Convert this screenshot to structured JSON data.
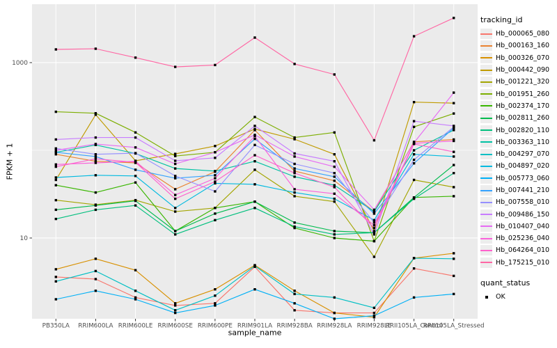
{
  "figure": {
    "panel_background": "#EBEBEB",
    "grid_color": "#FFFFFF",
    "tick_label_color": "#4D4D4D",
    "tick_mark_color": "#333333",
    "marker_color": "#000000"
  },
  "axes": {
    "x_title": "sample_name",
    "y_title": "FPKM + 1",
    "y_ticks": [
      {
        "label": "1000",
        "value": 1000
      },
      {
        "label": "10",
        "value": 10
      }
    ],
    "y_minor": [
      100
    ]
  },
  "legend": {
    "tracking_title": "tracking_id",
    "quant_title": "quant_status",
    "quant_items": [
      {
        "label": "OK",
        "marker": "black-square"
      }
    ]
  },
  "chart_data": {
    "type": "line",
    "title": "",
    "xlabel": "sample_name",
    "ylabel": "FPKM + 1",
    "y_scale": "log10",
    "ylim": [
      1.2,
      4640
    ],
    "grid": true,
    "legend_position": "right",
    "marker": {
      "shape": "square",
      "color": "#000000",
      "meaning": "quant_status OK"
    },
    "categories": [
      "PB350LA",
      "RRIM600LA",
      "RRIM600LE",
      "RRIM600SE",
      "RRIM600PE",
      "RRIM901LA",
      "RRIM928BA",
      "RRIM928LA",
      "RRIM928LE",
      "RRII105LA_Control",
      "RRII105LA_Stressed"
    ],
    "series": [
      {
        "name": "Hb_000065_080",
        "color": "#F8766D",
        "values": [
          3.6,
          3.4,
          2.1,
          1.7,
          1.8,
          4.7,
          1.5,
          1.4,
          1.4,
          4.5,
          3.7
        ]
      },
      {
        "name": "Hb_000163_160",
        "color": "#EA8331",
        "values": [
          90,
          75,
          72,
          36,
          57,
          170,
          58,
          45,
          20,
          125,
          133
        ]
      },
      {
        "name": "Hb_000326_070",
        "color": "#D89000",
        "values": [
          4.4,
          5.8,
          4.3,
          1.8,
          2.6,
          4.9,
          2.5,
          1.4,
          1.25,
          5.9,
          6.7
        ]
      },
      {
        "name": "Hb_000442_090",
        "color": "#C09B00",
        "values": [
          46,
          255,
          76,
          91,
          112,
          175,
          134,
          90,
          12,
          355,
          345
        ]
      },
      {
        "name": "Hb_001221_320",
        "color": "#A3A500",
        "values": [
          27,
          24,
          27,
          20,
          22,
          60,
          30,
          26,
          6.1,
          46,
          38
        ]
      },
      {
        "name": "Hb_001951_260",
        "color": "#7CAE00",
        "values": [
          275,
          265,
          160,
          86,
          95,
          240,
          140,
          160,
          9.2,
          185,
          263
        ]
      },
      {
        "name": "Hb_002374_170",
        "color": "#39B600",
        "values": [
          40,
          33,
          43,
          12,
          22,
          26,
          13,
          10,
          9.2,
          29,
          30
        ]
      },
      {
        "name": "Hb_002811_260",
        "color": "#00BB4E",
        "values": [
          21,
          23.5,
          26.5,
          12,
          19,
          26,
          15,
          12,
          11.5,
          29,
          68
        ]
      },
      {
        "name": "Hb_002820_110",
        "color": "#00BF7D",
        "values": [
          16.5,
          21,
          23.5,
          11,
          16,
          22,
          13.5,
          11,
          11.5,
          28,
          55
        ]
      },
      {
        "name": "Hb_003363_110",
        "color": "#00C1A3",
        "values": [
          95,
          115,
          92,
          62,
          58,
          75,
          50,
          40,
          20,
          100,
          170
        ]
      },
      {
        "name": "Hb_004297_070",
        "color": "#00BFC4",
        "values": [
          3.2,
          4.2,
          2.5,
          1.5,
          2.2,
          4.8,
          2.3,
          2.1,
          1.6,
          5.9,
          5.8
        ]
      },
      {
        "name": "Hb_004897_020",
        "color": "#00BAE0",
        "values": [
          49,
          52,
          51,
          22,
          42,
          41,
          33,
          28,
          16,
          90,
          85
        ]
      },
      {
        "name": "Hb_005773_060",
        "color": "#00B0F6",
        "values": [
          2.0,
          2.5,
          2.0,
          1.4,
          1.7,
          2.6,
          1.8,
          1.2,
          1.3,
          2.1,
          2.3
        ]
      },
      {
        "name": "Hb_007441_210",
        "color": "#35A2FF",
        "values": [
          95,
          85,
          60,
          48,
          52,
          135,
          62,
          50,
          19,
          71,
          180
        ]
      },
      {
        "name": "Hb_007558_010",
        "color": "#9590FF",
        "values": [
          105,
          90,
          93,
          51,
          34,
          115,
          70,
          55,
          15,
          78,
          185
        ]
      },
      {
        "name": "Hb_009486_150",
        "color": "#C77CFF",
        "values": [
          133,
          140,
          140,
          76,
          82,
          190,
          92,
          75,
          11,
          215,
          190
        ]
      },
      {
        "name": "Hb_010407_040",
        "color": "#E76BF3",
        "values": [
          100,
          118,
          108,
          70,
          95,
          150,
          85,
          65,
          21,
          122,
          455
        ]
      },
      {
        "name": "Hb_025236_040",
        "color": "#FA62DB",
        "values": [
          69,
          72,
          75,
          31,
          48,
          145,
          36,
          32,
          14,
          120,
          128
        ]
      },
      {
        "name": "Hb_064264_010",
        "color": "#FF61CC",
        "values": [
          65,
          80,
          73,
          28,
          44,
          88,
          55,
          38,
          13,
          118,
          96
        ]
      },
      {
        "name": "Hb_175215_010",
        "color": "#FF67A4",
        "values": [
          1415,
          1440,
          1140,
          895,
          940,
          1930,
          965,
          733,
          130,
          2000,
          3230
        ]
      }
    ]
  }
}
